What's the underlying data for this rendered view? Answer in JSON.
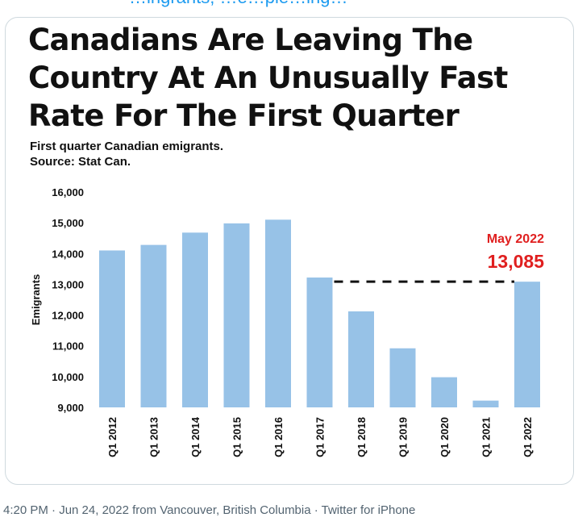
{
  "tweet": {
    "top_text": "…ingrants, …e…ple…ing…",
    "footer": "4:20 PM · Jun 24, 2022 from Vancouver, British Columbia · Twitter for iPhone"
  },
  "colors": {
    "bar": "#97c2e7",
    "annotation": "#e01f1f",
    "text": "#111111"
  },
  "chart_data": {
    "type": "bar",
    "title": "Canadians Are Leaving The Country At An Unusually Fast Rate For The First Quarter",
    "subtitle_line1": "First quarter Canadian emigrants.",
    "subtitle_line2": "Source: Stat Can.",
    "xlabel": "",
    "ylabel": "Emigrants",
    "ylim": [
      9000,
      16000
    ],
    "yticks": [
      9000,
      10000,
      11000,
      12000,
      13000,
      14000,
      15000,
      16000
    ],
    "ytick_labels": [
      "9,000",
      "10,000",
      "11,000",
      "12,000",
      "13,000",
      "14,000",
      "15,000",
      "16,000"
    ],
    "grid": false,
    "categories": [
      "Q1 2012",
      "Q1 2013",
      "Q1 2014",
      "Q1 2015",
      "Q1 2016",
      "Q1 2017",
      "Q1 2018",
      "Q1 2019",
      "Q1 2020",
      "Q1 2021",
      "Q1 2022"
    ],
    "values": [
      14100,
      14280,
      14680,
      14980,
      15100,
      13220,
      12120,
      10920,
      9980,
      9220,
      13085
    ],
    "annotation": {
      "label": "May 2022",
      "value_label": "13,085",
      "reference_line_value": 13085,
      "reference_line_from": "Q1 2017",
      "reference_line_to": "Q1 2022",
      "reference_line_style": "dashed"
    }
  }
}
